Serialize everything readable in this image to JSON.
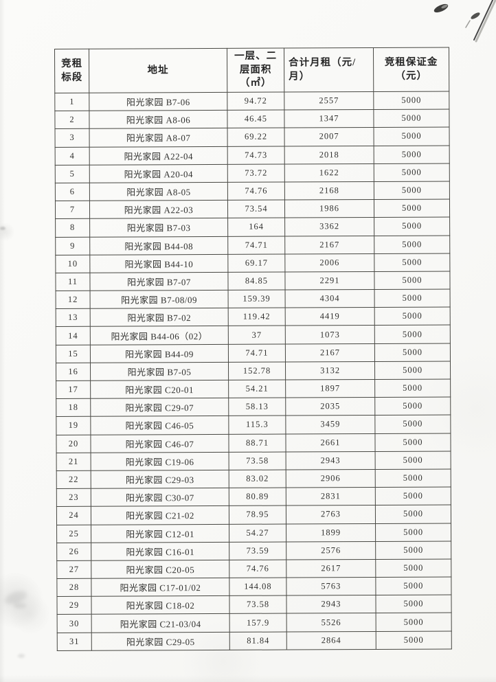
{
  "colors": {
    "paper": "#f9f9f6",
    "table_border": "#3d3d38",
    "text": "#2b2b2b"
  },
  "table": {
    "headers": [
      {
        "key": "bid-section",
        "label": "竞租标段"
      },
      {
        "key": "address",
        "label": "地址"
      },
      {
        "key": "area",
        "label": "一层、二层面积（㎡）"
      },
      {
        "key": "monthly-rent",
        "label": "合计月租（元/月）"
      },
      {
        "key": "deposit",
        "label": "竞租保证金（元）"
      }
    ],
    "rows": [
      [
        "1",
        "阳光家园 B7-06",
        "94.72",
        "2557",
        "5000"
      ],
      [
        "2",
        "阳光家园 A8-06",
        "46.45",
        "1347",
        "5000"
      ],
      [
        "3",
        "阳光家园 A8-07",
        "69.22",
        "2007",
        "5000"
      ],
      [
        "4",
        "阳光家园 A22-04",
        "74.73",
        "2018",
        "5000"
      ],
      [
        "5",
        "阳光家园 A20-04",
        "73.72",
        "1622",
        "5000"
      ],
      [
        "6",
        "阳光家园 A8-05",
        "74.76",
        "2168",
        "5000"
      ],
      [
        "7",
        "阳光家园 A22-03",
        "73.54",
        "1986",
        "5000"
      ],
      [
        "8",
        "阳光家园 B7-03",
        "164",
        "3362",
        "5000"
      ],
      [
        "9",
        "阳光家园 B44-08",
        "74.71",
        "2167",
        "5000"
      ],
      [
        "10",
        "阳光家园 B44-10",
        "69.17",
        "2006",
        "5000"
      ],
      [
        "11",
        "阳光家园 B7-07",
        "84.85",
        "2291",
        "5000"
      ],
      [
        "12",
        "阳光家园 B7-08/09",
        "159.39",
        "4304",
        "5000"
      ],
      [
        "13",
        "阳光家园 B7-02",
        "119.42",
        "4419",
        "5000"
      ],
      [
        "14",
        "阳光家园 B44-06（02）",
        "37",
        "1073",
        "5000"
      ],
      [
        "15",
        "阳光家园 B44-09",
        "74.71",
        "2167",
        "5000"
      ],
      [
        "16",
        "阳光家园 B7-05",
        "152.78",
        "3132",
        "5000"
      ],
      [
        "17",
        "阳光家园 C20-01",
        "54.21",
        "1897",
        "5000"
      ],
      [
        "18",
        "阳光家园 C29-07",
        "58.13",
        "2035",
        "5000"
      ],
      [
        "19",
        "阳光家园 C46-05",
        "115.3",
        "3459",
        "5000"
      ],
      [
        "20",
        "阳光家园 C46-07",
        "88.71",
        "2661",
        "5000"
      ],
      [
        "21",
        "阳光家园 C19-06",
        "73.58",
        "2943",
        "5000"
      ],
      [
        "22",
        "阳光家园 C29-03",
        "83.02",
        "2906",
        "5000"
      ],
      [
        "23",
        "阳光家园 C30-07",
        "80.89",
        "2831",
        "5000"
      ],
      [
        "24",
        "阳光家园 C21-02",
        "78.95",
        "2763",
        "5000"
      ],
      [
        "25",
        "阳光家园 C12-01",
        "54.27",
        "1899",
        "5000"
      ],
      [
        "26",
        "阳光家园 C16-01",
        "73.59",
        "2576",
        "5000"
      ],
      [
        "27",
        "阳光家园 C20-05",
        "74.76",
        "2617",
        "5000"
      ],
      [
        "28",
        "阳光家园 C17-01/02",
        "144.08",
        "5763",
        "5000"
      ],
      [
        "29",
        "阳光家园 C18-02",
        "73.58",
        "2943",
        "5000"
      ],
      [
        "30",
        "阳光家园 C21-03/04",
        "157.9",
        "5526",
        "5000"
      ],
      [
        "31",
        "阳光家园 C29-05",
        "81.84",
        "2864",
        "5000"
      ]
    ]
  }
}
